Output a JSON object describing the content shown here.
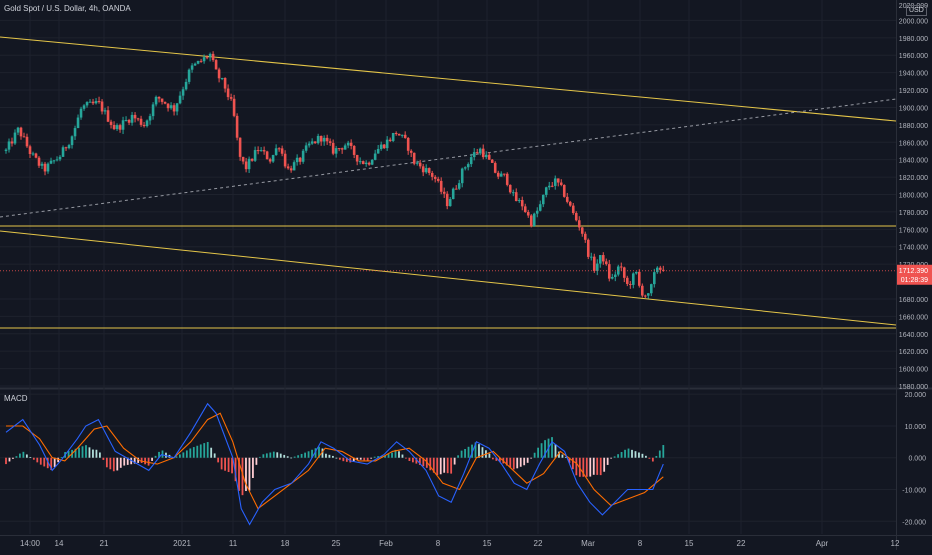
{
  "header": {
    "title": "Gold Spot / U.S. Dollar, 4h, OANDA",
    "currency": "USD",
    "price_axis_top": "2020.000"
  },
  "price_badge": {
    "price": "1712.390",
    "countdown": "01:28:39",
    "color": "#ef5350"
  },
  "colors": {
    "background": "#131722",
    "grid": "#1e222d",
    "up": "#26a69a",
    "down": "#ef5350",
    "trendline": "#e5c649",
    "macd": "#2962ff",
    "signal": "#ff6d00",
    "hist_pos": "#26a69a",
    "hist_pos_light": "#b2dfdb",
    "hist_neg": "#ef5350",
    "hist_neg_light": "#ffcdd2"
  },
  "chart_data": [
    {
      "type": "candlestick",
      "title": "Gold Spot / U.S. Dollar, 4h, OANDA",
      "ylim": [
        1580,
        2020
      ],
      "y_ticks": [
        "2000.000",
        "1980.000",
        "1960.000",
        "1940.000",
        "1920.000",
        "1900.000",
        "1880.000",
        "1860.000",
        "1840.000",
        "1820.000",
        "1800.000",
        "1780.000",
        "1760.000",
        "1740.000",
        "1720.000",
        "1680.000",
        "1660.000",
        "1640.000",
        "1620.000",
        "1600.000",
        "1580.000"
      ],
      "x_ticks": [
        "14:00",
        "14",
        "21",
        "2021",
        "11",
        "18",
        "25",
        "Feb",
        "8",
        "15",
        "22",
        "Mar",
        "8",
        "15",
        "22",
        "Apr",
        "12"
      ],
      "grid": true,
      "last_price": 1712.39,
      "close_path": [
        {
          "t": 0.0,
          "p": 1850
        },
        {
          "t": 0.03,
          "p": 1875
        },
        {
          "t": 0.06,
          "p": 1846
        },
        {
          "t": 0.09,
          "p": 1828
        },
        {
          "t": 0.13,
          "p": 1845
        },
        {
          "t": 0.16,
          "p": 1870
        },
        {
          "t": 0.18,
          "p": 1900
        },
        {
          "t": 0.22,
          "p": 1905
        },
        {
          "t": 0.26,
          "p": 1875
        },
        {
          "t": 0.3,
          "p": 1890
        },
        {
          "t": 0.33,
          "p": 1880
        },
        {
          "t": 0.36,
          "p": 1912
        },
        {
          "t": 0.4,
          "p": 1898
        },
        {
          "t": 0.44,
          "p": 1945
        },
        {
          "t": 0.47,
          "p": 1955
        },
        {
          "t": 0.485,
          "p": 1962
        },
        {
          "t": 0.5,
          "p": 1940
        },
        {
          "t": 0.52,
          "p": 1925
        },
        {
          "t": 0.54,
          "p": 1900
        },
        {
          "t": 0.555,
          "p": 1845
        },
        {
          "t": 0.57,
          "p": 1830
        },
        {
          "t": 0.6,
          "p": 1852
        },
        {
          "t": 0.63,
          "p": 1840
        },
        {
          "t": 0.65,
          "p": 1858
        },
        {
          "t": 0.67,
          "p": 1828
        },
        {
          "t": 0.7,
          "p": 1840
        },
        {
          "t": 0.72,
          "p": 1856
        },
        {
          "t": 0.75,
          "p": 1866
        },
        {
          "t": 0.78,
          "p": 1850
        },
        {
          "t": 0.81,
          "p": 1858
        },
        {
          "t": 0.84,
          "p": 1840
        },
        {
          "t": 0.86,
          "p": 1835
        },
        {
          "t": 0.88,
          "p": 1850
        },
        {
          "t": 0.91,
          "p": 1862
        },
        {
          "t": 0.93,
          "p": 1872
        },
        {
          "t": 0.955,
          "p": 1858
        },
        {
          "t": 0.97,
          "p": 1838
        },
        {
          "t": 1.0,
          "p": 1828
        },
        {
          "t": 1.02,
          "p": 1820
        },
        {
          "t": 1.05,
          "p": 1790
        },
        {
          "t": 1.07,
          "p": 1808
        },
        {
          "t": 1.09,
          "p": 1830
        },
        {
          "t": 1.11,
          "p": 1845
        },
        {
          "t": 1.13,
          "p": 1852
        },
        {
          "t": 1.15,
          "p": 1838
        },
        {
          "t": 1.17,
          "p": 1822
        },
        {
          "t": 1.19,
          "p": 1820
        },
        {
          "t": 1.21,
          "p": 1795
        },
        {
          "t": 1.23,
          "p": 1788
        },
        {
          "t": 1.25,
          "p": 1768
        },
        {
          "t": 1.27,
          "p": 1785
        },
        {
          "t": 1.29,
          "p": 1810
        },
        {
          "t": 1.31,
          "p": 1815
        },
        {
          "t": 1.33,
          "p": 1800
        },
        {
          "t": 1.35,
          "p": 1778
        },
        {
          "t": 1.37,
          "p": 1760
        },
        {
          "t": 1.385,
          "p": 1735
        },
        {
          "t": 1.4,
          "p": 1715
        },
        {
          "t": 1.42,
          "p": 1730
        },
        {
          "t": 1.44,
          "p": 1700
        },
        {
          "t": 1.46,
          "p": 1718
        },
        {
          "t": 1.48,
          "p": 1695
        },
        {
          "t": 1.5,
          "p": 1710
        },
        {
          "t": 1.51,
          "p": 1690
        },
        {
          "t": 1.53,
          "p": 1682
        },
        {
          "t": 1.54,
          "p": 1700
        },
        {
          "t": 1.55,
          "p": 1718
        },
        {
          "t": 1.565,
          "p": 1712
        }
      ]
    },
    {
      "type": "macd",
      "title": "MACD",
      "ylim": [
        -24,
        21
      ],
      "y_ticks": [
        "20.000",
        "10.000",
        "0.000",
        "-10.000",
        "-20.000"
      ],
      "macd_line": [
        {
          "t": 0.0,
          "v": 8
        },
        {
          "t": 0.04,
          "v": 12
        },
        {
          "t": 0.08,
          "v": 4
        },
        {
          "t": 0.11,
          "v": -4
        },
        {
          "t": 0.13,
          "v": -1
        },
        {
          "t": 0.17,
          "v": 6
        },
        {
          "t": 0.19,
          "v": 10
        },
        {
          "t": 0.22,
          "v": 12
        },
        {
          "t": 0.26,
          "v": 2
        },
        {
          "t": 0.3,
          "v": -1
        },
        {
          "t": 0.34,
          "v": -4
        },
        {
          "t": 0.37,
          "v": 1
        },
        {
          "t": 0.4,
          "v": 0
        },
        {
          "t": 0.44,
          "v": 8
        },
        {
          "t": 0.48,
          "v": 17
        },
        {
          "t": 0.5,
          "v": 14
        },
        {
          "t": 0.54,
          "v": 0
        },
        {
          "t": 0.56,
          "v": -16
        },
        {
          "t": 0.58,
          "v": -21
        },
        {
          "t": 0.61,
          "v": -14
        },
        {
          "t": 0.64,
          "v": -10
        },
        {
          "t": 0.68,
          "v": -8
        },
        {
          "t": 0.72,
          "v": -2
        },
        {
          "t": 0.75,
          "v": 5
        },
        {
          "t": 0.78,
          "v": 3
        },
        {
          "t": 0.82,
          "v": -1
        },
        {
          "t": 0.86,
          "v": -2
        },
        {
          "t": 0.9,
          "v": 1
        },
        {
          "t": 0.93,
          "v": 5
        },
        {
          "t": 0.96,
          "v": 2
        },
        {
          "t": 1.0,
          "v": -4
        },
        {
          "t": 1.03,
          "v": -12
        },
        {
          "t": 1.06,
          "v": -14
        },
        {
          "t": 1.09,
          "v": -5
        },
        {
          "t": 1.12,
          "v": 5
        },
        {
          "t": 1.15,
          "v": 3
        },
        {
          "t": 1.18,
          "v": -2
        },
        {
          "t": 1.21,
          "v": -8
        },
        {
          "t": 1.24,
          "v": -10
        },
        {
          "t": 1.27,
          "v": -2
        },
        {
          "t": 1.3,
          "v": 5
        },
        {
          "t": 1.33,
          "v": 2
        },
        {
          "t": 1.36,
          "v": -8
        },
        {
          "t": 1.39,
          "v": -14
        },
        {
          "t": 1.42,
          "v": -18
        },
        {
          "t": 1.45,
          "v": -14
        },
        {
          "t": 1.48,
          "v": -10
        },
        {
          "t": 1.51,
          "v": -10
        },
        {
          "t": 1.54,
          "v": -10
        },
        {
          "t": 1.565,
          "v": -2
        }
      ],
      "signal_line": [
        {
          "t": 0.0,
          "v": 10
        },
        {
          "t": 0.04,
          "v": 10
        },
        {
          "t": 0.08,
          "v": 6
        },
        {
          "t": 0.11,
          "v": 0
        },
        {
          "t": 0.14,
          "v": -1
        },
        {
          "t": 0.17,
          "v": 3
        },
        {
          "t": 0.21,
          "v": 9
        },
        {
          "t": 0.24,
          "v": 10
        },
        {
          "t": 0.28,
          "v": 3
        },
        {
          "t": 0.32,
          "v": -1
        },
        {
          "t": 0.36,
          "v": -2
        },
        {
          "t": 0.4,
          "v": 0
        },
        {
          "t": 0.44,
          "v": 5
        },
        {
          "t": 0.48,
          "v": 12
        },
        {
          "t": 0.51,
          "v": 14
        },
        {
          "t": 0.54,
          "v": 5
        },
        {
          "t": 0.57,
          "v": -8
        },
        {
          "t": 0.6,
          "v": -16
        },
        {
          "t": 0.64,
          "v": -12
        },
        {
          "t": 0.68,
          "v": -8
        },
        {
          "t": 0.72,
          "v": -4
        },
        {
          "t": 0.76,
          "v": 3
        },
        {
          "t": 0.8,
          "v": 2
        },
        {
          "t": 0.84,
          "v": -1
        },
        {
          "t": 0.88,
          "v": -1
        },
        {
          "t": 0.92,
          "v": 2
        },
        {
          "t": 0.96,
          "v": 3
        },
        {
          "t": 1.0,
          "v": -1
        },
        {
          "t": 1.04,
          "v": -8
        },
        {
          "t": 1.08,
          "v": -10
        },
        {
          "t": 1.12,
          "v": 0
        },
        {
          "t": 1.16,
          "v": 2
        },
        {
          "t": 1.2,
          "v": -3
        },
        {
          "t": 1.24,
          "v": -8
        },
        {
          "t": 1.28,
          "v": -5
        },
        {
          "t": 1.32,
          "v": 2
        },
        {
          "t": 1.36,
          "v": -2
        },
        {
          "t": 1.4,
          "v": -10
        },
        {
          "t": 1.44,
          "v": -15
        },
        {
          "t": 1.48,
          "v": -13
        },
        {
          "t": 1.52,
          "v": -11
        },
        {
          "t": 1.565,
          "v": -6
        }
      ]
    }
  ]
}
